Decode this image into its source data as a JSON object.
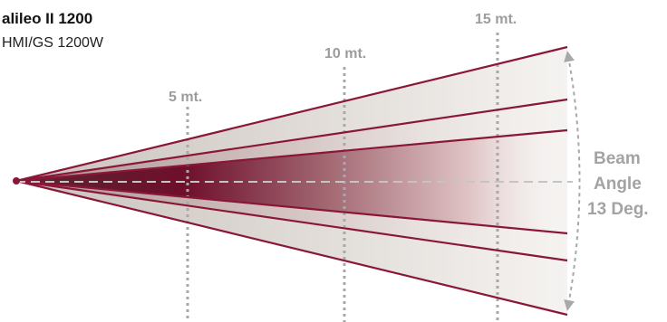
{
  "header": {
    "title": "alileo II 1200",
    "subtitle": "HMI/GS 1200W"
  },
  "distance_markers": [
    {
      "label": "5 mt.",
      "distance_m": 5
    },
    {
      "label": "10 mt.",
      "distance_m": 10
    },
    {
      "label": "15 mt.",
      "distance_m": 15
    }
  ],
  "beam_angle": {
    "line1": "Beam",
    "line2": "Angle",
    "line3": "13 Deg."
  },
  "colors": {
    "beam_line": "#8b1738",
    "beam_core": "#6e0f2c",
    "beam_fill": "#ddd8d3",
    "marker_line": "#a8a8a8",
    "label_gray": "#9c9c9c"
  }
}
